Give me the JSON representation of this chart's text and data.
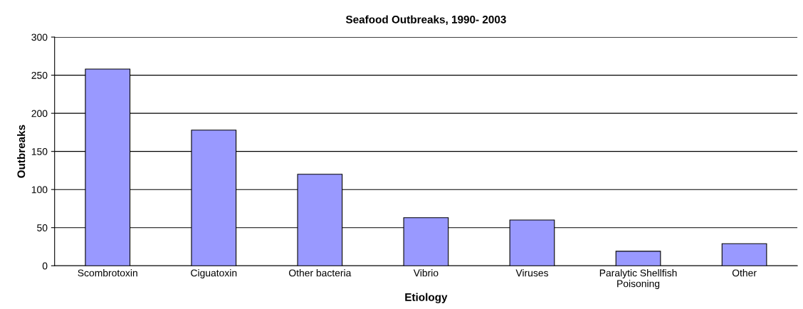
{
  "chart_data": {
    "type": "bar",
    "title": "Seafood Outbreaks, 1990- 2003",
    "xlabel": "Etiology",
    "ylabel": "Outbreaks",
    "categories": [
      "Scombrotoxin",
      "Ciguatoxin",
      "Other bacteria",
      "Vibrio",
      "Viruses",
      "Paralytic Shellfish\nPoisoning",
      "Other"
    ],
    "values": [
      258,
      178,
      120,
      63,
      60,
      19,
      29
    ],
    "color": "#9999ff",
    "ylim": [
      0,
      300
    ],
    "yticks": [
      0,
      50,
      100,
      150,
      200,
      250,
      300
    ],
    "grid": "y",
    "legend": false
  }
}
